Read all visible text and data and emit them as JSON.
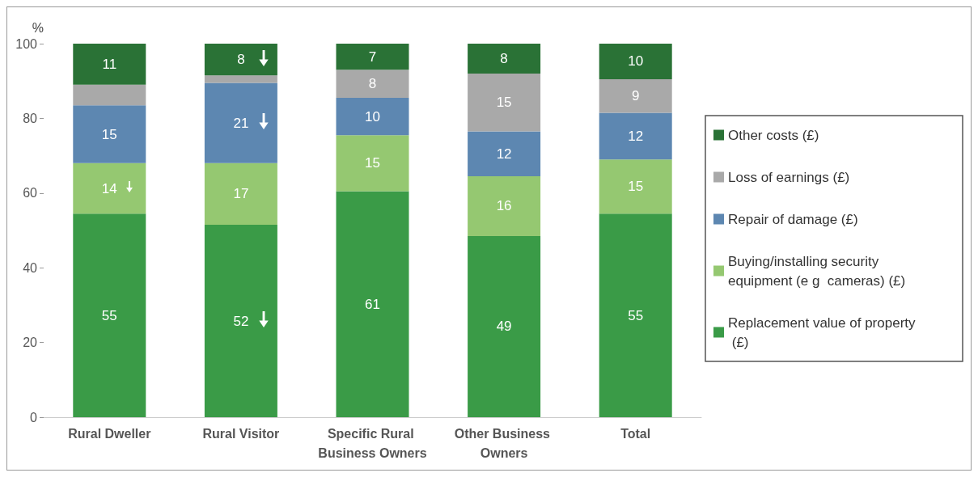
{
  "chart_data": {
    "type": "bar",
    "stacked": true,
    "ylabel": "%",
    "categories": [
      "Rural Dweller",
      "Rural Visitor",
      "Specific Rural Business Owners",
      "Other Business Owners",
      "Total"
    ],
    "series": [
      {
        "name": "Replacement value of property (£)",
        "color": "#3a9b47",
        "values": [
          54.5,
          51.5,
          60.5,
          48.5,
          54.5
        ],
        "value_labels": [
          "55",
          "52",
          "61",
          "49",
          "55"
        ]
      },
      {
        "name": "Buying/installing security equipment (e g  cameras) (£)",
        "color": "#95c871",
        "values": [
          13.5,
          16.5,
          15,
          16,
          14.5
        ],
        "value_labels": [
          "14",
          "17",
          "15",
          "16",
          "15"
        ]
      },
      {
        "name": "Repair of damage (£)",
        "color": "#5d87b1",
        "values": [
          15.5,
          21.5,
          10,
          12,
          12.5
        ],
        "value_labels": [
          "15",
          "21",
          "10",
          "12",
          "12"
        ]
      },
      {
        "name": "Loss of earnings (£)",
        "color": "#a9a9a9",
        "values": [
          5.5,
          2,
          7.5,
          15.5,
          9
        ],
        "value_labels": [
          null,
          null,
          "8",
          "15",
          "9"
        ]
      },
      {
        "name": "Other costs (£)",
        "color": "#2a7236",
        "values": [
          11,
          8.5,
          7,
          8,
          9.5
        ],
        "value_labels": [
          "11",
          "8",
          "7",
          "8",
          "10"
        ]
      }
    ],
    "ylim": [
      0,
      100
    ],
    "yticks": [
      0,
      20,
      40,
      60,
      80,
      100
    ],
    "grid": false,
    "legend": "right"
  }
}
